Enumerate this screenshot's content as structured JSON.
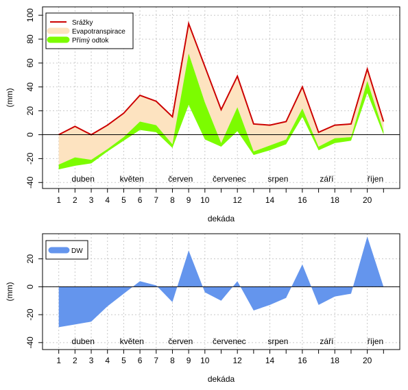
{
  "chart_data": [
    {
      "type": "area",
      "xlabel": "dekáda",
      "ylabel": "(mm)",
      "xlim": [
        0,
        22
      ],
      "ylim": [
        -45,
        107
      ],
      "grid": true,
      "legend_position": "top-left",
      "x": [
        1,
        2,
        3,
        4,
        5,
        6,
        7,
        8,
        9,
        10,
        11,
        12,
        13,
        14,
        15,
        16,
        17,
        18,
        19,
        20,
        21
      ],
      "x_ticks": [
        1,
        2,
        3,
        4,
        5,
        6,
        7,
        8,
        9,
        10,
        12,
        14,
        16,
        18,
        20
      ],
      "y_ticks": [
        -40,
        -20,
        0,
        20,
        40,
        60,
        80,
        100
      ],
      "month_labels": [
        {
          "x": 2.5,
          "label": "duben"
        },
        {
          "x": 5.5,
          "label": "květen"
        },
        {
          "x": 8.5,
          "label": "červen"
        },
        {
          "x": 11.5,
          "label": "červenec"
        },
        {
          "x": 14.5,
          "label": "srpen"
        },
        {
          "x": 17.5,
          "label": "září"
        },
        {
          "x": 20.5,
          "label": "říjen"
        }
      ],
      "series": [
        {
          "name": "Srážky",
          "kind": "line",
          "color": "#cc0000",
          "values": [
            0,
            7,
            0,
            8,
            18,
            33,
            28,
            15,
            93,
            57,
            21,
            49,
            9,
            8,
            11,
            40,
            2,
            8,
            9,
            55,
            11
          ]
        },
        {
          "name": "Evapotranspirace",
          "kind": "band",
          "color": "#fde3c0",
          "upper": [
            0,
            7,
            0,
            8,
            18,
            33,
            28,
            15,
            93,
            57,
            21,
            49,
            9,
            8,
            11,
            40,
            2,
            8,
            9,
            55,
            11
          ],
          "lower": [
            -25,
            -19,
            -21,
            -12,
            -2,
            11,
            8,
            -8,
            68,
            27,
            -7,
            23,
            -14,
            -9,
            -4,
            22,
            -10,
            -3,
            -2,
            45,
            3
          ]
        },
        {
          "name": "Přímý odtok",
          "kind": "band",
          "color": "#7cfc00",
          "upper": [
            -25,
            -19,
            -21,
            -12,
            -2,
            11,
            8,
            -8,
            68,
            27,
            -7,
            23,
            -14,
            -9,
            -4,
            22,
            -10,
            -3,
            -2,
            45,
            3
          ],
          "lower": [
            -29,
            -26,
            -24,
            -14,
            -5,
            4,
            2,
            -11,
            25,
            -4,
            -10,
            3,
            -17,
            -13,
            -8,
            15,
            -13,
            -7,
            -5,
            35,
            0
          ]
        }
      ],
      "reference_line": 0
    },
    {
      "type": "area",
      "xlabel": "dekáda",
      "ylabel": "(mm)",
      "xlim": [
        0,
        22
      ],
      "ylim": [
        -45,
        38
      ],
      "grid": true,
      "legend_position": "top-left",
      "x": [
        1,
        2,
        3,
        4,
        5,
        6,
        7,
        8,
        9,
        10,
        11,
        12,
        13,
        14,
        15,
        16,
        17,
        18,
        19,
        20,
        21
      ],
      "x_ticks": [
        1,
        2,
        3,
        4,
        5,
        6,
        7,
        8,
        9,
        10,
        12,
        14,
        16,
        18,
        20
      ],
      "y_ticks": [
        -40,
        -20,
        0,
        20
      ],
      "month_labels": [
        {
          "x": 2.5,
          "label": "duben"
        },
        {
          "x": 5.5,
          "label": "květen"
        },
        {
          "x": 8.5,
          "label": "červen"
        },
        {
          "x": 11.5,
          "label": "červenec"
        },
        {
          "x": 14.5,
          "label": "srpen"
        },
        {
          "x": 17.5,
          "label": "září"
        },
        {
          "x": 20.5,
          "label": "říjen"
        }
      ],
      "series": [
        {
          "name": "DW",
          "kind": "area",
          "color": "#6495ed",
          "values": [
            -29,
            -27,
            -25,
            -14,
            -5,
            4,
            1,
            -11,
            26,
            -4,
            -10,
            4,
            -17,
            -13,
            -8,
            16,
            -13,
            -7,
            -5,
            36,
            0
          ]
        }
      ],
      "reference_line": 0
    }
  ]
}
